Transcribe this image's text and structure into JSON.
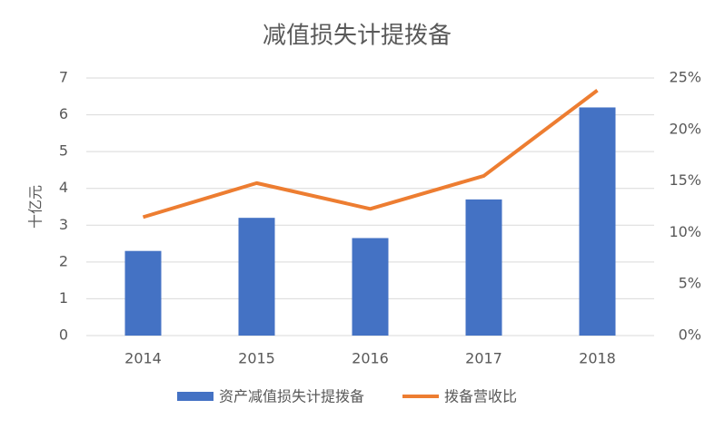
{
  "chart_data": {
    "type": "bar",
    "title": "减值损失计提拨备",
    "y_label": "十亿元",
    "categories": [
      "2014",
      "2015",
      "2016",
      "2017",
      "2018"
    ],
    "series": [
      {
        "name": "资产减值损失计提拨备",
        "type": "bar",
        "color": "#4472c4",
        "values": [
          2.3,
          3.2,
          2.65,
          3.7,
          6.2
        ]
      },
      {
        "name": "拨备营收比",
        "type": "line",
        "axis": "y2",
        "color": "#ed7d31",
        "values": [
          11.5,
          14.8,
          12.3,
          15.5,
          23.8
        ]
      }
    ],
    "ylim": [
      0,
      7
    ],
    "yticks": [
      0,
      1,
      2,
      3,
      4,
      5,
      6,
      7
    ],
    "y2lim": [
      0,
      25
    ],
    "y2ticks": [
      {
        "value": 0,
        "label": "0%"
      },
      {
        "value": 5,
        "label": "5%"
      },
      {
        "value": 10,
        "label": "10%"
      },
      {
        "value": 15,
        "label": "15%"
      },
      {
        "value": 20,
        "label": "20%"
      },
      {
        "value": 25,
        "label": "25%"
      }
    ],
    "grid": true,
    "legend": "bottom"
  }
}
